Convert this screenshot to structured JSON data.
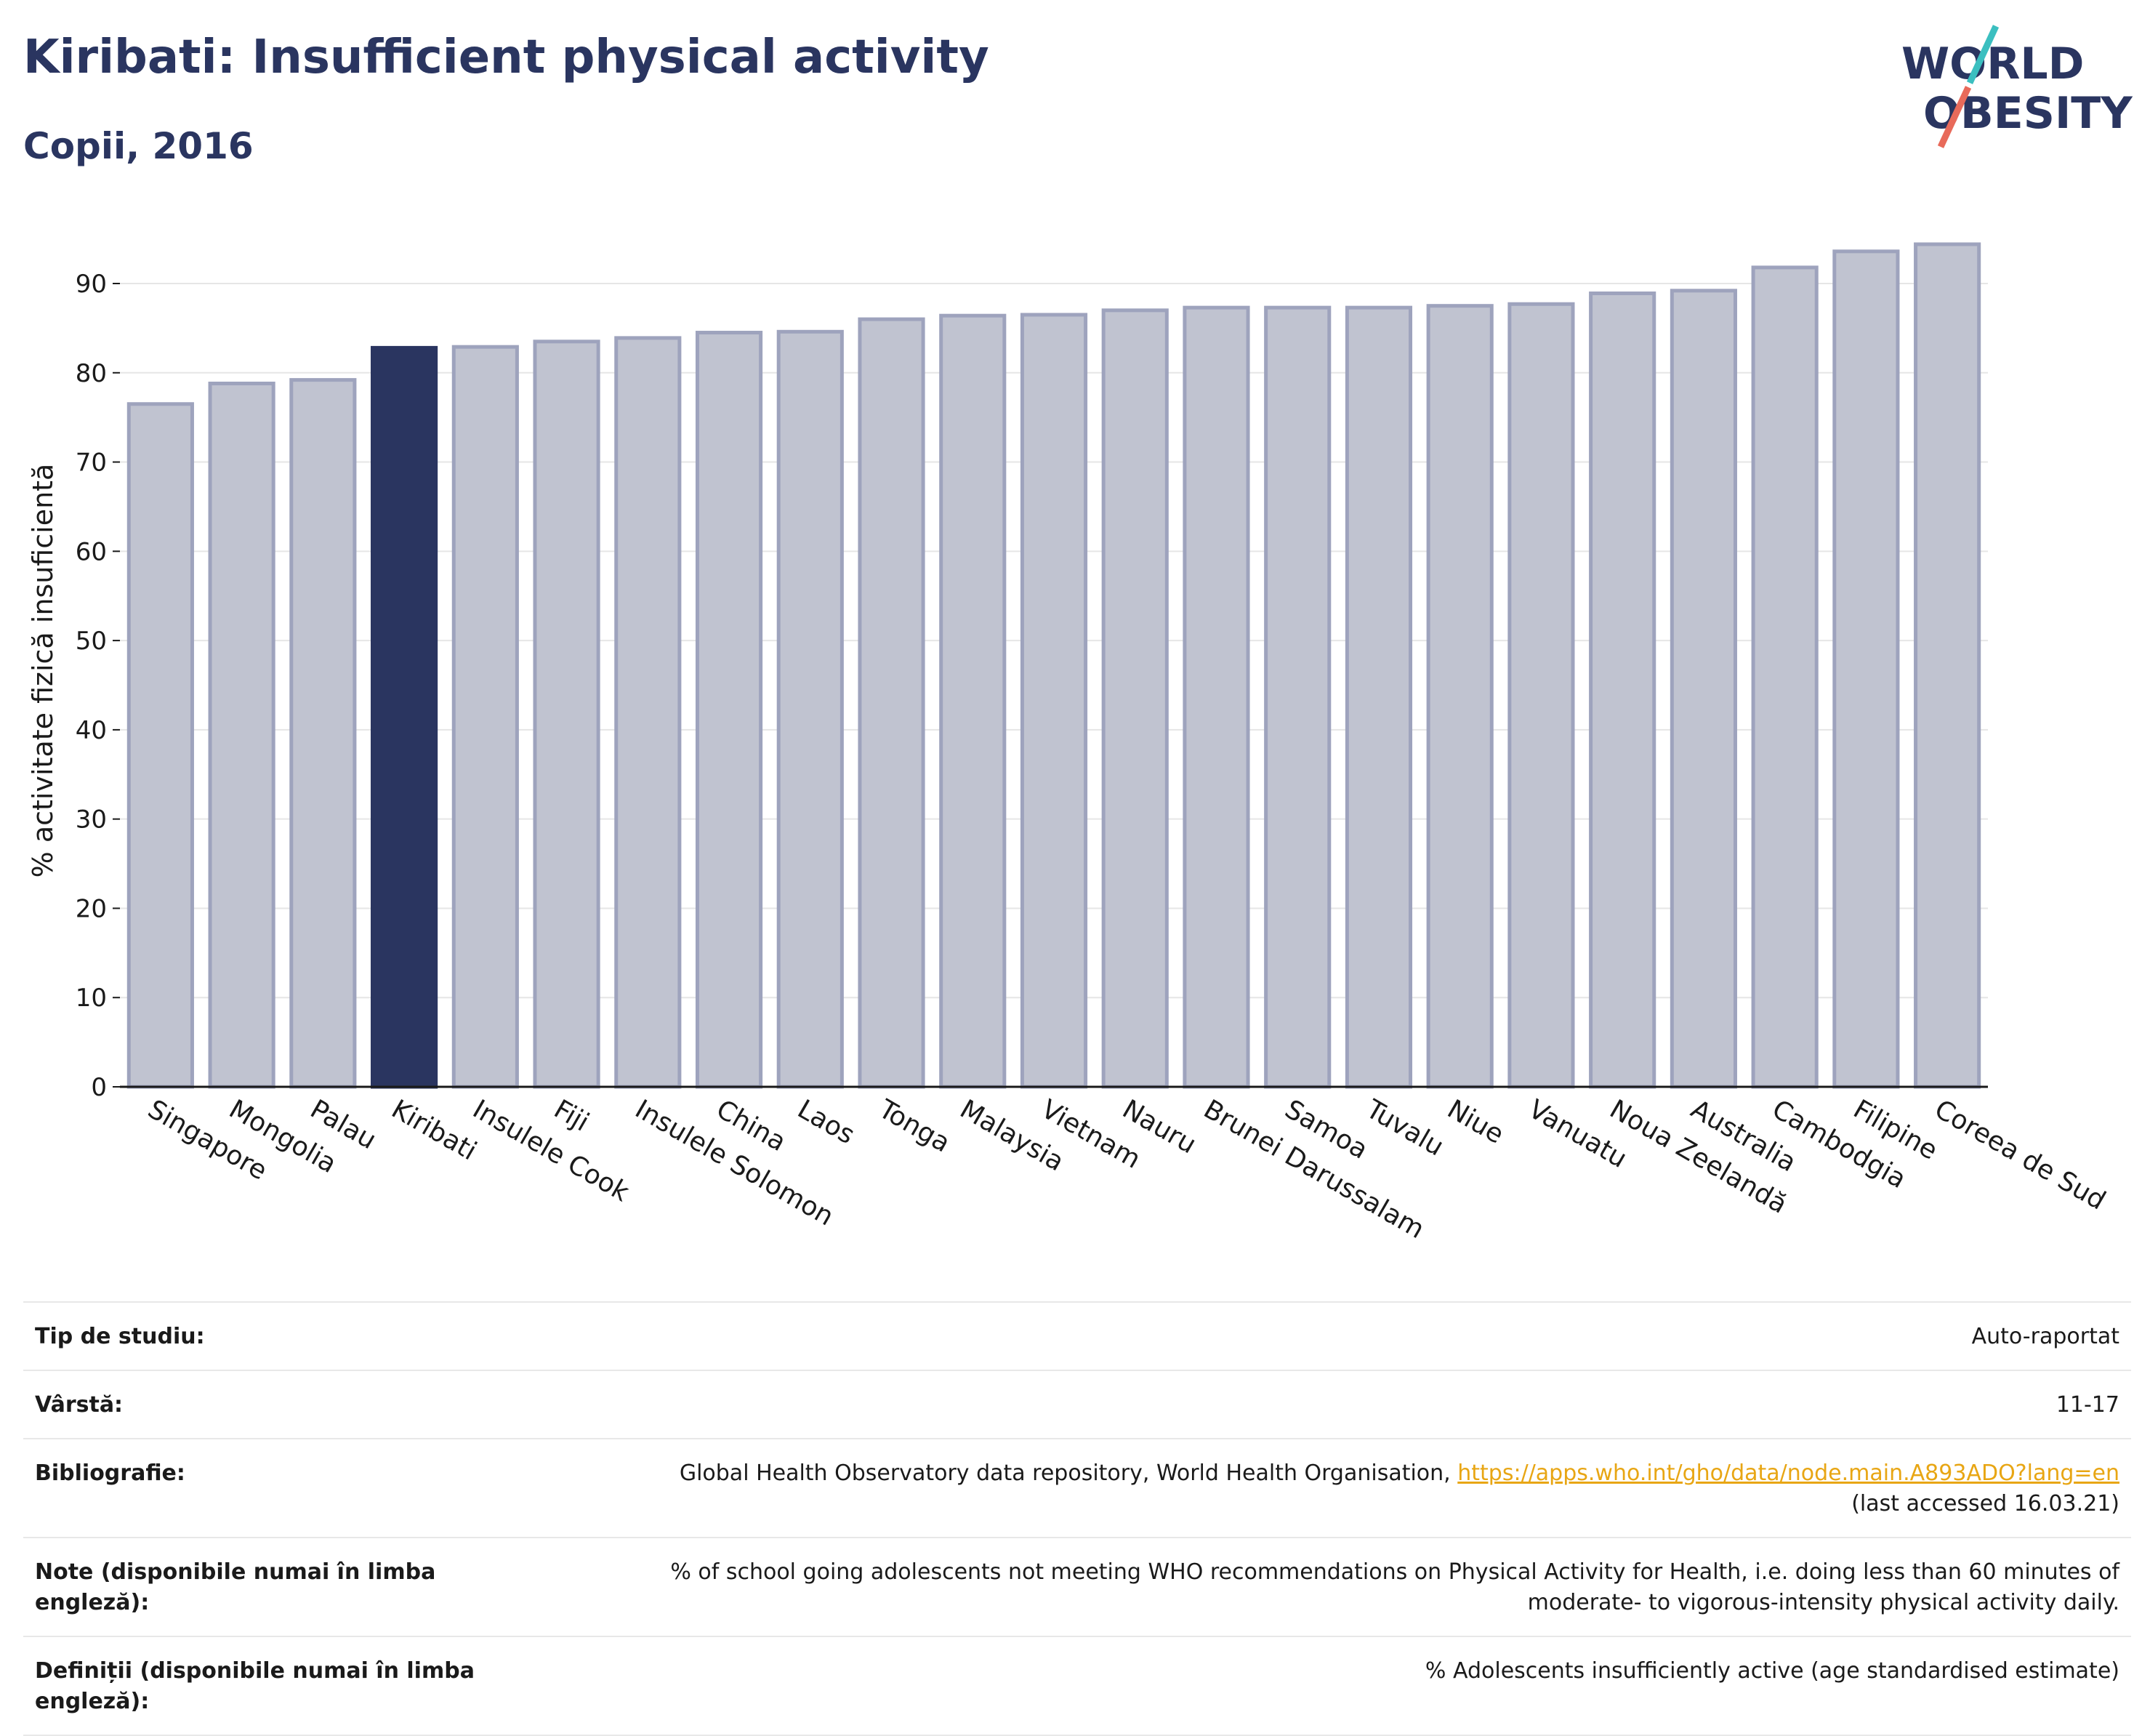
{
  "header": {
    "title": "Kiribati: Insufficient physical activity",
    "subtitle": "Copii, 2016"
  },
  "logo": {
    "line1": "WORLD",
    "line2": "OBESITY",
    "colors": {
      "text": "#2a3560",
      "slash_teal": "#3bbfc0",
      "slash_red": "#e86a5a"
    }
  },
  "colors": {
    "bar": "#c0c3d0",
    "bar_stroke": "#9ea3bd",
    "highlight": "#2a3560",
    "grid": "#e6e6e6",
    "axis": "#1a1a1a",
    "link": "#e8a614"
  },
  "chart_data": {
    "type": "bar",
    "categories": [
      "Singapore",
      "Mongolia",
      "Palau",
      "Kiribati",
      "Insulele Cook",
      "Fiji",
      "Insulele Solomon",
      "China",
      "Laos",
      "Tonga",
      "Malaysia",
      "Vietnam",
      "Nauru",
      "Brunei Darussalam",
      "Samoa",
      "Tuvalu",
      "Niue",
      "Vanuatu",
      "Noua Zeelandă",
      "Australia",
      "Cambodgia",
      "Filipine",
      "Coreea de Sud"
    ],
    "values": [
      76.5,
      78.8,
      79.2,
      82.8,
      82.9,
      83.5,
      83.9,
      84.5,
      84.6,
      86.0,
      86.4,
      86.5,
      87.0,
      87.3,
      87.3,
      87.3,
      87.5,
      87.7,
      88.9,
      89.2,
      91.8,
      93.6,
      94.4
    ],
    "highlight": "Kiribati",
    "ylabel": "% activitate fizică insuficientă",
    "xlabel": "",
    "ylim": [
      0,
      95
    ],
    "yticks": [
      0,
      10,
      20,
      30,
      40,
      50,
      60,
      70,
      80,
      90
    ],
    "grid": true
  },
  "info": {
    "rows": [
      {
        "label": "Tip de studiu:",
        "value": "Auto-raportat"
      },
      {
        "label": "Vârstă:",
        "value": "11-17"
      },
      {
        "label": "Bibliografie:",
        "value": "Global Health Observatory data repository, World Health Organisation,",
        "link": "https://apps.who.int/gho/data/node.main.A893ADO?lang=en",
        "value2": "(last accessed 16.03.21)"
      },
      {
        "label": "Note (disponibile numai în limba engleză):",
        "value": "% of school going adolescents not meeting WHO recommendations on Physical Activity for Health, i.e. doing less than 60 minutes of",
        "value2": "moderate- to vigorous-intensity physical activity daily."
      },
      {
        "label": "Definiții (disponibile numai în limba engleză):",
        "value": "% Adolescents insufficiently active (age standardised estimate)"
      }
    ]
  }
}
